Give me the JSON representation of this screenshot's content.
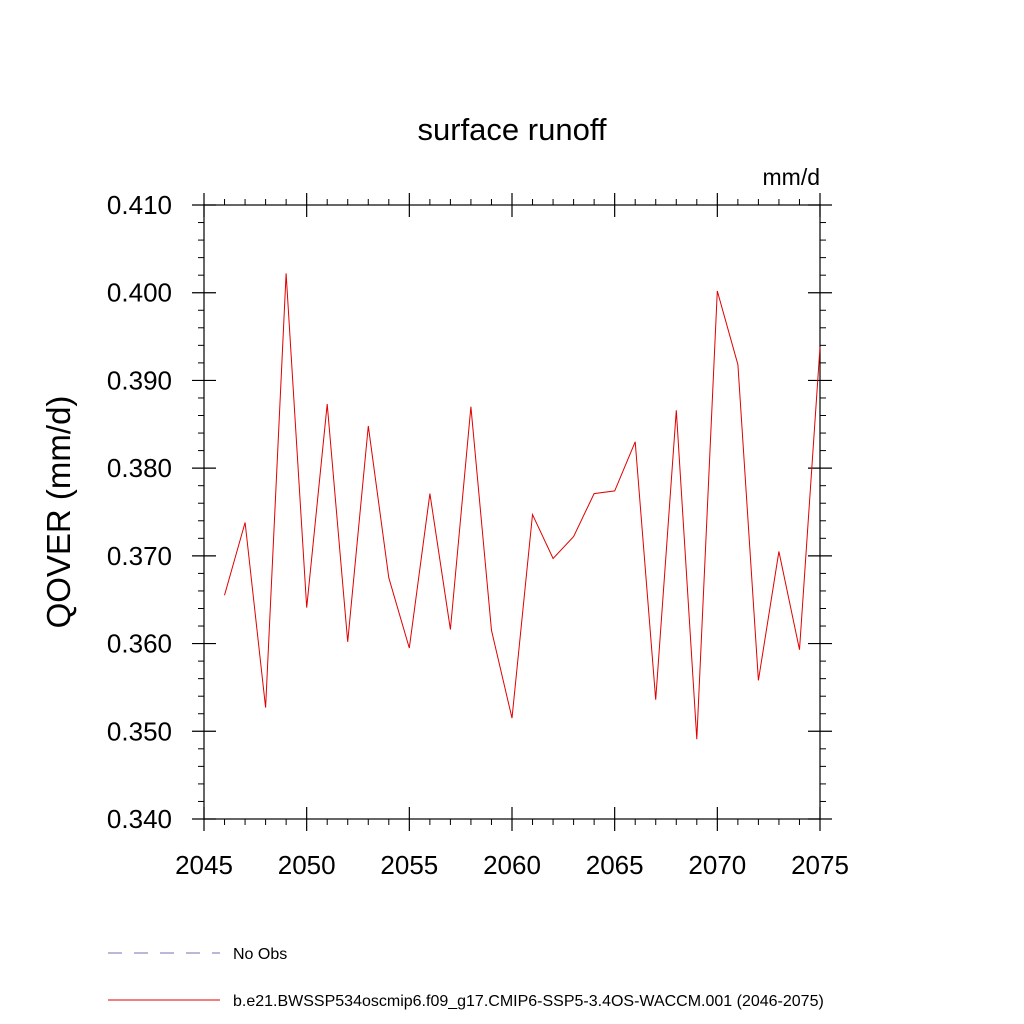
{
  "chart_data": {
    "type": "line",
    "title": "surface runoff",
    "units": "mm/d",
    "ylabel": "QOVER  (mm/d)",
    "xlabel": "",
    "xlim": [
      2045,
      2075
    ],
    "ylim": [
      0.34,
      0.41
    ],
    "x_ticks": [
      2045,
      2050,
      2055,
      2060,
      2065,
      2070,
      2075
    ],
    "x_tick_labels": [
      "2045",
      "2050",
      "2055",
      "2060",
      "2065",
      "2070",
      "2075"
    ],
    "y_ticks": [
      0.34,
      0.35,
      0.36,
      0.37,
      0.38,
      0.39,
      0.4,
      0.41
    ],
    "y_tick_labels": [
      "0.340",
      "0.350",
      "0.360",
      "0.370",
      "0.380",
      "0.390",
      "0.400",
      "0.410"
    ],
    "legend": [
      {
        "label": "No Obs",
        "color": "#7a6fb0",
        "style": "dashed"
      },
      {
        "label": "b.e21.BWSSP534oscmip6.f09_g17.CMIP6-SSP5-3.4OS-WACCM.001 (2046-2075)",
        "color": "#e00000",
        "style": "solid"
      }
    ],
    "series": [
      {
        "name": "b.e21.BWSSP534oscmip6.f09_g17.CMIP6-SSP5-3.4OS-WACCM.001 (2046-2075)",
        "color": "#e00000",
        "x": [
          2046,
          2047,
          2048,
          2049,
          2050,
          2051,
          2052,
          2053,
          2054,
          2055,
          2056,
          2057,
          2058,
          2059,
          2060,
          2061,
          2062,
          2063,
          2064,
          2065,
          2066,
          2067,
          2068,
          2069,
          2070,
          2071,
          2072,
          2073,
          2074,
          2075
        ],
        "values": [
          0.3655,
          0.3738,
          0.3527,
          0.4022,
          0.3641,
          0.3873,
          0.3602,
          0.3848,
          0.3675,
          0.3595,
          0.3771,
          0.3616,
          0.387,
          0.3615,
          0.3515,
          0.3747,
          0.3697,
          0.3722,
          0.3771,
          0.3774,
          0.383,
          0.3536,
          0.3866,
          0.3491,
          0.4002,
          0.3918,
          0.3558,
          0.3705,
          0.3593,
          0.3938
        ]
      }
    ]
  }
}
